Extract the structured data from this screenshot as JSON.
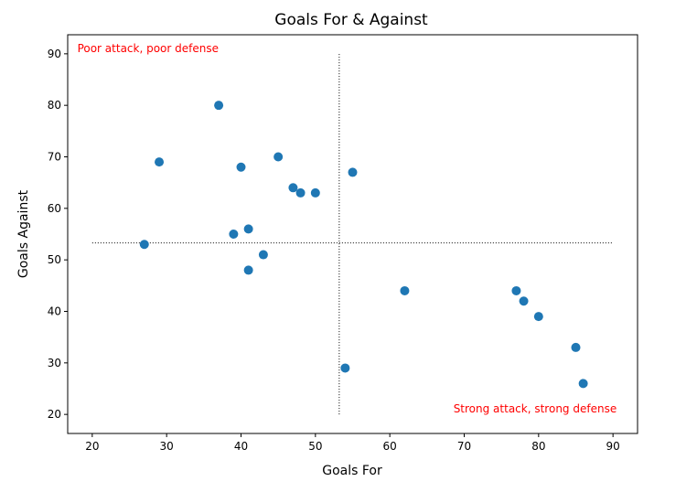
{
  "chart_data": {
    "type": "scatter",
    "title": "Goals For & Against",
    "xlabel": "Goals For",
    "ylabel": "Goals Against",
    "xlim": [
      16.7,
      93.3
    ],
    "ylim": [
      16.3,
      93.7
    ],
    "xticks": [
      20,
      30,
      40,
      50,
      60,
      70,
      80,
      90
    ],
    "yticks": [
      20,
      30,
      40,
      50,
      60,
      70,
      80,
      90
    ],
    "grid": false,
    "point_color": "#1f77b4",
    "points": [
      {
        "x": 27,
        "y": 53
      },
      {
        "x": 29,
        "y": 69
      },
      {
        "x": 37,
        "y": 80
      },
      {
        "x": 39,
        "y": 55
      },
      {
        "x": 40,
        "y": 68
      },
      {
        "x": 41,
        "y": 56
      },
      {
        "x": 41,
        "y": 48
      },
      {
        "x": 43,
        "y": 51
      },
      {
        "x": 45,
        "y": 70
      },
      {
        "x": 47,
        "y": 64
      },
      {
        "x": 48,
        "y": 63
      },
      {
        "x": 50,
        "y": 63
      },
      {
        "x": 54,
        "y": 29
      },
      {
        "x": 55,
        "y": 67
      },
      {
        "x": 62,
        "y": 44
      },
      {
        "x": 77,
        "y": 44
      },
      {
        "x": 78,
        "y": 42
      },
      {
        "x": 80,
        "y": 39
      },
      {
        "x": 85,
        "y": 33
      },
      {
        "x": 86,
        "y": 26
      }
    ],
    "reference_lines": {
      "color": "#000000",
      "style": "dotted",
      "vertical": {
        "x": 53.2,
        "y_from": 20,
        "y_to": 90
      },
      "horizontal": {
        "y": 53.3,
        "x_from": 20,
        "x_to": 90
      }
    },
    "annotations": [
      {
        "text": "Poor attack, poor defense",
        "x": 18,
        "y": 90,
        "color": "#ff0000",
        "anchor": "start"
      },
      {
        "text": "Strong attack, strong defense",
        "x": 90.5,
        "y": 20,
        "color": "#ff0000",
        "anchor": "end"
      }
    ]
  }
}
